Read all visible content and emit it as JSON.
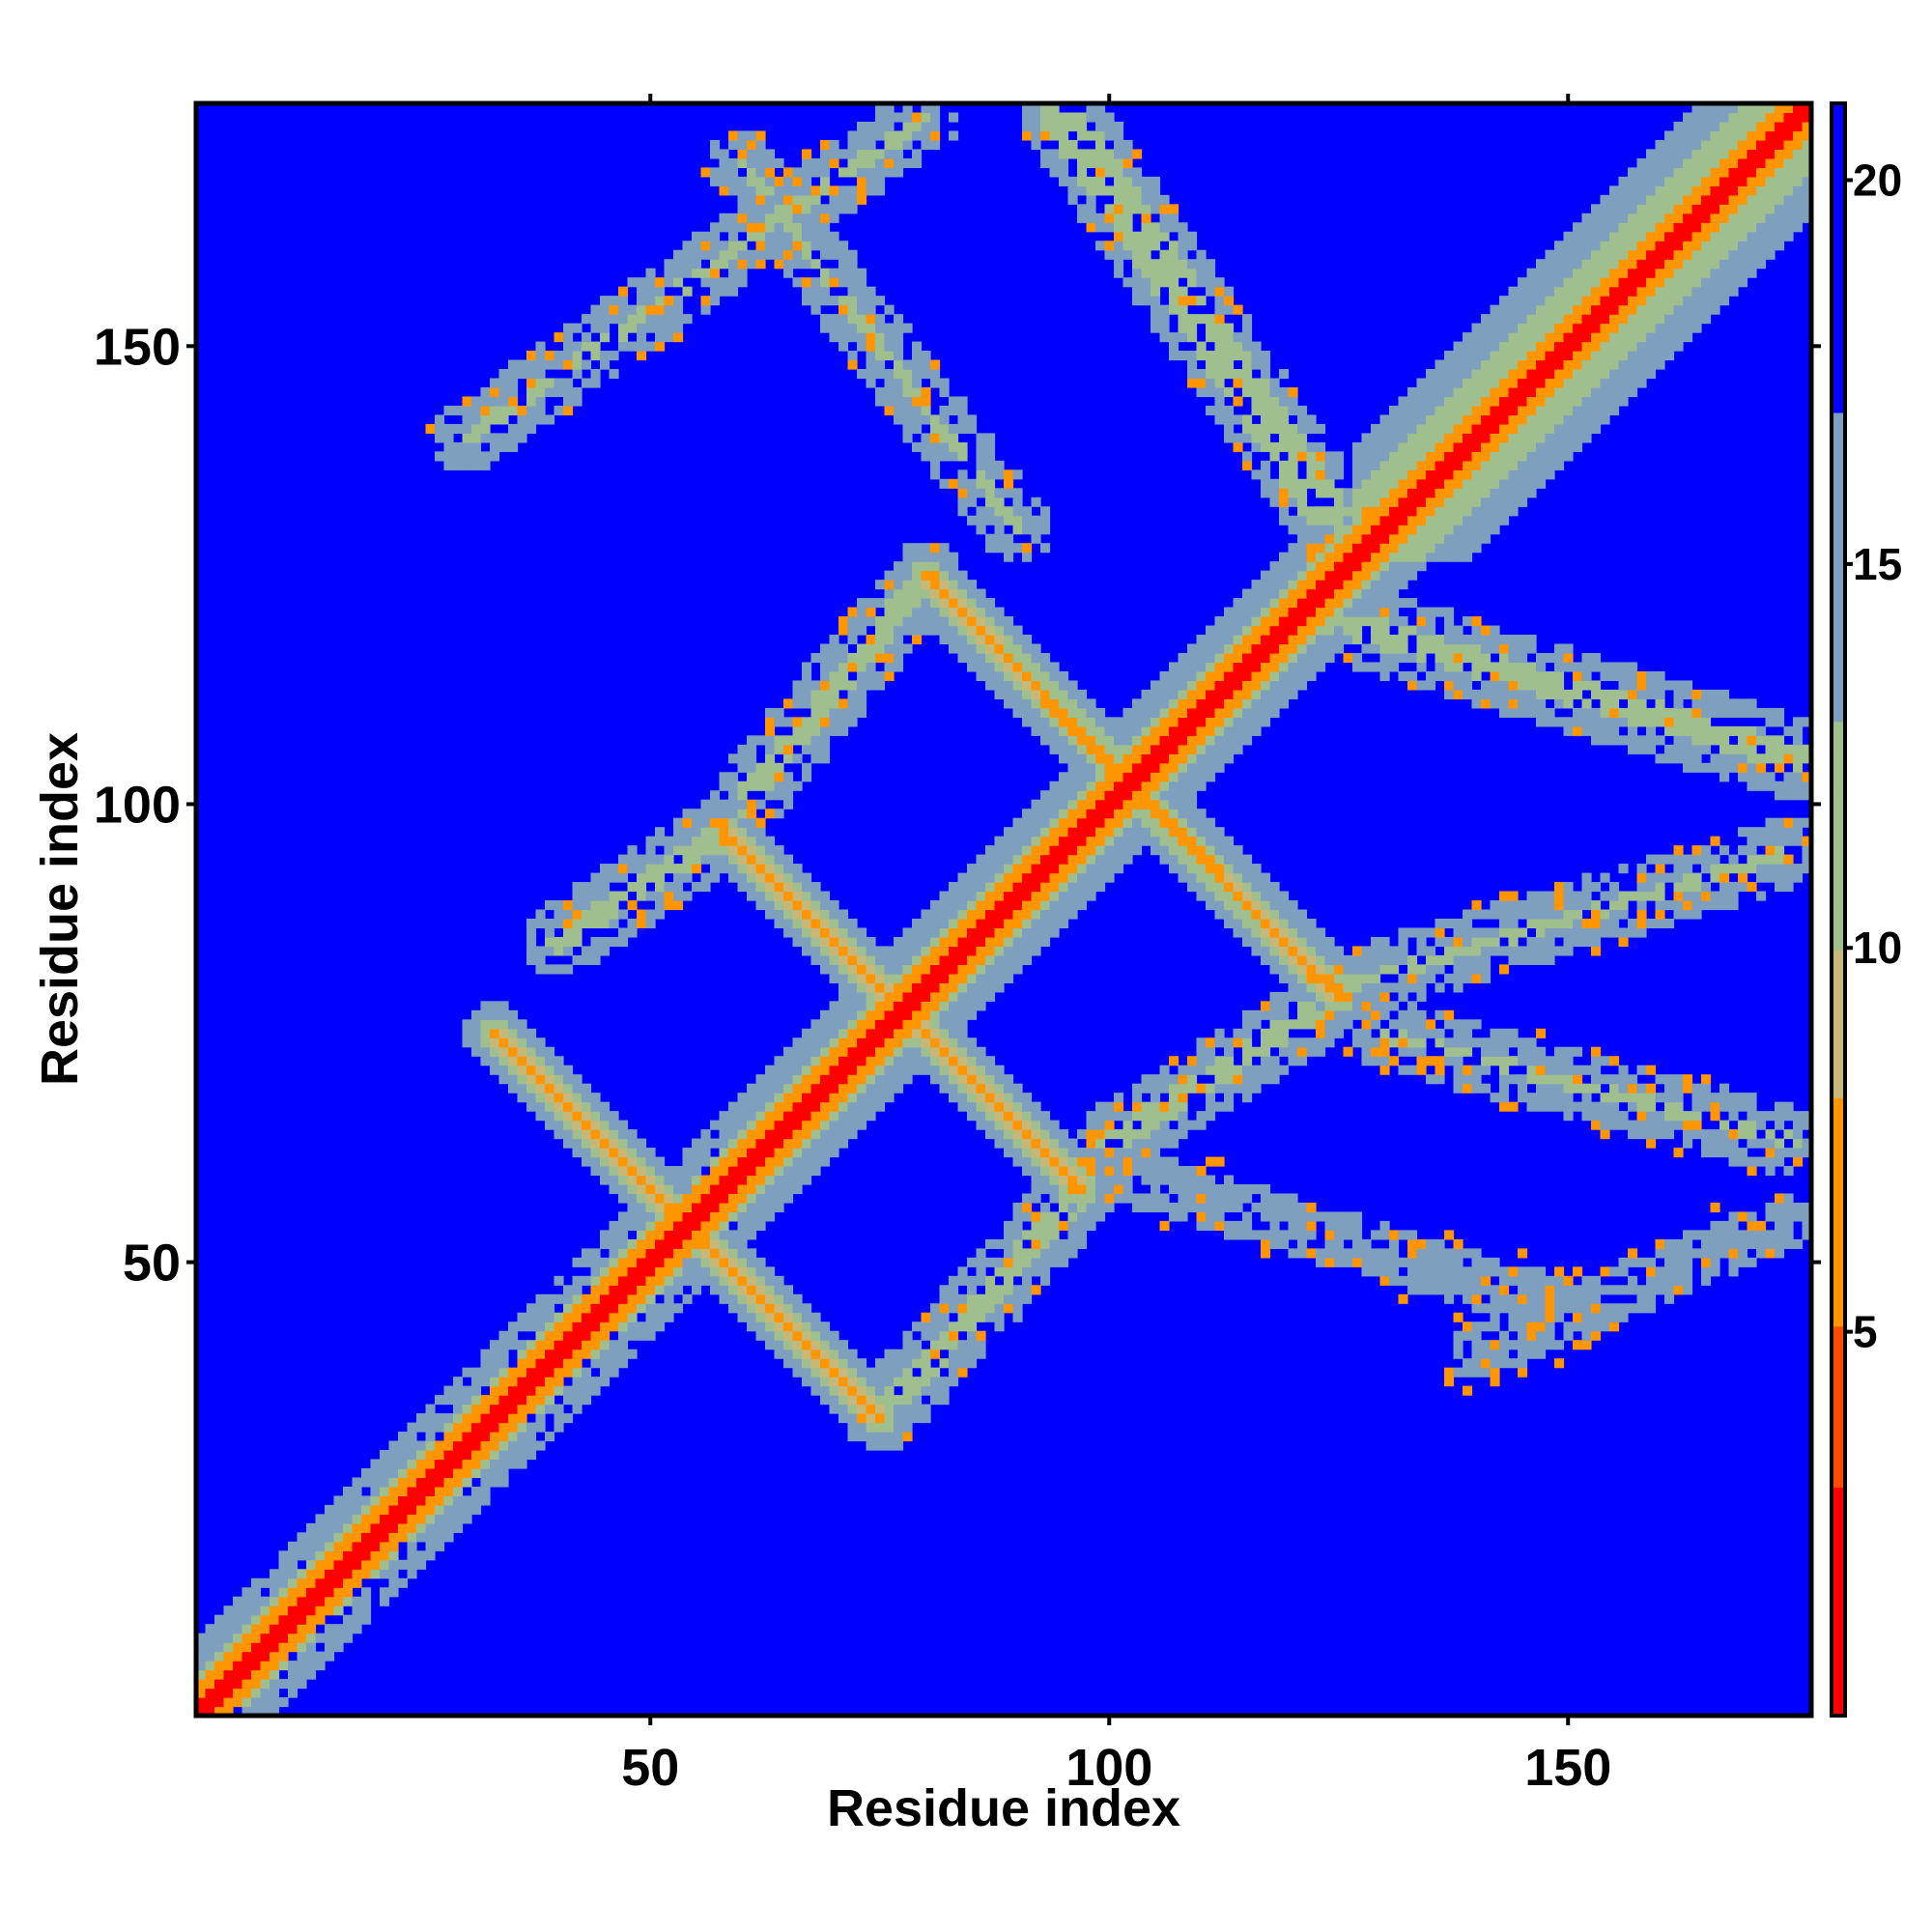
{
  "chart_data": {
    "type": "heatmap",
    "title": "",
    "xlabel": "Residue index",
    "ylabel": "Residue index",
    "xlim": [
      1,
      176
    ],
    "ylim": [
      1,
      176
    ],
    "xticks": [
      50,
      100,
      150
    ],
    "yticks": [
      50,
      100,
      150
    ],
    "colorbar": {
      "range": [
        0,
        21
      ],
      "ticks": [
        5,
        10,
        15,
        20
      ],
      "colors": [
        "#ff0000",
        "#ff4000",
        "#ff8c00",
        "#ffa500",
        "#9fbf8f",
        "#7f9fbf",
        "#0000ff"
      ]
    },
    "background_value": 21,
    "background_color": "#0000ff",
    "description_of_features": {
      "diagonal": {
        "from": [
          1,
          1
        ],
        "to": [
          176,
          176
        ],
        "value_core": 2
      },
      "antiparallel_strands": [
        {
          "from": [
            80,
            125
          ],
          "to": [
            125,
            79
          ],
          "value_core": 6
        },
        {
          "from": [
            58,
            97
          ],
          "to": [
            97,
            58
          ],
          "value_core": 6
        },
        {
          "from": [
            33,
            75
          ],
          "to": [
            75,
            33
          ],
          "value_core": 6
        }
      ],
      "parallel_contacts": [
        {
          "from": [
            40,
            85
          ],
          "to": [
            58,
            97
          ],
          "value_core": 11
        },
        {
          "from": [
            75,
            33
          ],
          "to": [
            97,
            58
          ],
          "value_core": 11
        },
        {
          "from": [
            100,
            63
          ],
          "to": [
            125,
            79
          ],
          "value_core": 11
        },
        {
          "from": [
            60,
            100
          ],
          "to": [
            80,
            125
          ],
          "value_core": 11
        }
      ],
      "outer_bands": [
        {
          "from": [
            30,
            140
          ],
          "to": [
            80,
            175
          ],
          "value_core": 12
        },
        {
          "from": [
            60,
            170
          ],
          "to": [
            90,
            130
          ],
          "value_core": 12
        },
        {
          "from": [
            95,
            175
          ],
          "to": [
            125,
            130
          ],
          "value_core": 10
        },
        {
          "from": [
            125,
            120
          ],
          "to": [
            175,
            105
          ],
          "value_core": 11
        },
        {
          "from": [
            125,
            80
          ],
          "to": [
            175,
            95
          ],
          "value_core": 12
        },
        {
          "from": [
            100,
            60
          ],
          "to": [
            150,
            45
          ],
          "value_core": 13
        },
        {
          "from": [
            130,
            75
          ],
          "to": [
            175,
            63
          ],
          "value_core": 12
        },
        {
          "from": [
            140,
            40
          ],
          "to": [
            175,
            55
          ],
          "value_core": 13
        }
      ]
    }
  },
  "axes": {
    "x_tick_labels": [
      "50",
      "100",
      "150"
    ],
    "y_tick_labels": [
      "50",
      "100",
      "150"
    ],
    "colorbar_tick_labels": [
      "5",
      "10",
      "15",
      "20"
    ]
  }
}
